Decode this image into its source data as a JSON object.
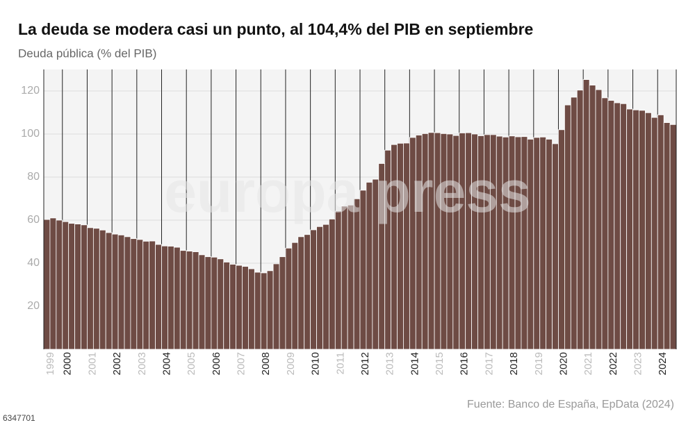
{
  "chart_data": {
    "type": "bar",
    "title": "La deuda se modera casi un punto, al 104,4% del PIB en septiembre",
    "subtitle": "Deuda pública (% del PIB)",
    "source": "Fuente: Banco de España, EpData (2024)",
    "watermark": "europa press",
    "image_id": "6347701",
    "color": "#6e4b44",
    "grid": true,
    "ylim": [
      0,
      130
    ],
    "yticks": [
      20,
      40,
      60,
      80,
      100,
      120
    ],
    "categories": [
      "1999",
      null,
      null,
      "2000",
      null,
      null,
      null,
      "2001",
      null,
      null,
      null,
      "2002",
      null,
      null,
      null,
      "2003",
      null,
      null,
      null,
      "2004",
      null,
      null,
      null,
      "2005",
      null,
      null,
      null,
      "2006",
      null,
      null,
      null,
      "2007",
      null,
      null,
      null,
      "2008",
      null,
      null,
      null,
      "2009",
      null,
      null,
      null,
      "2010",
      null,
      null,
      null,
      "2011",
      null,
      null,
      null,
      "2012",
      null,
      null,
      null,
      "2013",
      null,
      null,
      null,
      "2014",
      null,
      null,
      null,
      "2015",
      null,
      null,
      null,
      "2016",
      null,
      null,
      null,
      "2017",
      null,
      null,
      null,
      "2018",
      null,
      null,
      null,
      "2019",
      null,
      null,
      null,
      "2020",
      null,
      null,
      null,
      "2021",
      null,
      null,
      null,
      "2022",
      null,
      null,
      null,
      "2023",
      null,
      null,
      null,
      "2024",
      null,
      null
    ],
    "values": [
      60.3,
      61.0,
      60.0,
      59.3,
      58.5,
      58.2,
      57.8,
      56.5,
      56.2,
      55.4,
      54.2,
      53.5,
      53.1,
      52.3,
      51.4,
      51.0,
      50.2,
      50.3,
      48.7,
      48.0,
      47.9,
      47.4,
      45.9,
      45.6,
      45.3,
      43.9,
      43.0,
      42.8,
      42.0,
      40.5,
      39.5,
      39.0,
      38.5,
      37.4,
      35.8,
      35.5,
      36.5,
      39.7,
      43.0,
      47.0,
      49.6,
      52.3,
      53.3,
      55.5,
      57.0,
      58.0,
      60.5,
      64.2,
      66.5,
      67.0,
      69.9,
      73.9,
      77.6,
      79.0,
      86.3,
      92.5,
      95.1,
      95.7,
      95.8,
      98.4,
      99.5,
      100.2,
      100.7,
      100.6,
      100.2,
      100.0,
      99.3,
      100.5,
      100.6,
      100.0,
      99.2,
      99.7,
      99.7,
      99.0,
      98.6,
      99.1,
      98.7,
      98.8,
      97.6,
      98.4,
      98.6,
      97.6,
      95.5,
      102.0,
      113.5,
      117.1,
      120.4,
      125.3,
      122.7,
      120.6,
      116.8,
      115.6,
      114.5,
      114.1,
      111.6,
      111.2,
      111.0,
      109.9,
      107.7,
      108.9,
      105.3,
      104.4
    ]
  }
}
